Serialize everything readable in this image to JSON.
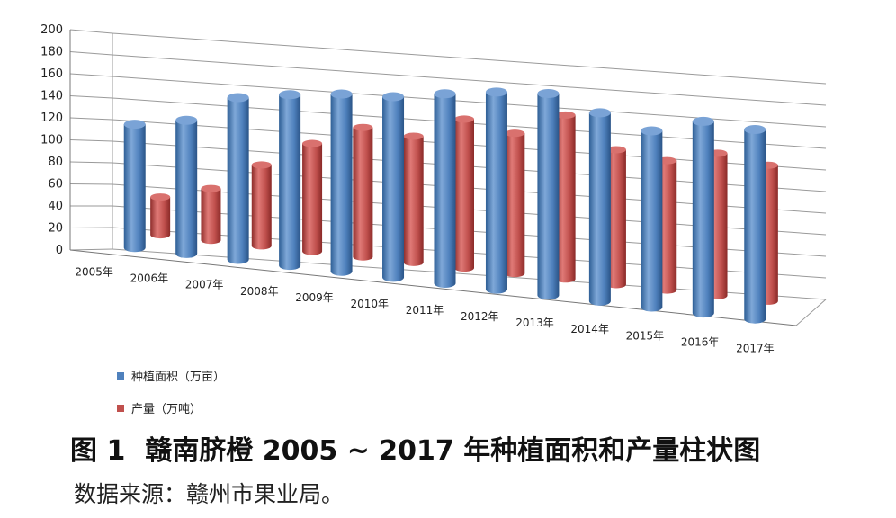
{
  "chart_data": {
    "type": "bar",
    "categories": [
      "2005年",
      "2006年",
      "2007年",
      "2008年",
      "2009年",
      "2010年",
      "2011年",
      "2012年",
      "2013年",
      "2014年",
      "2015年",
      "2016年",
      "2017年"
    ],
    "series": [
      {
        "name": "种植面积（万亩）",
        "color": "#4f81bd",
        "values": [
          112,
          121,
          147,
          155,
          161,
          164,
          172,
          179,
          183,
          171,
          160,
          174,
          172
        ]
      },
      {
        "name": "产量（万吨）",
        "color": "#c0504d",
        "values": [
          35,
          48,
          75,
          100,
          120,
          117,
          138,
          130,
          152,
          125,
          120,
          132,
          126
        ]
      }
    ],
    "yticks": [
      0,
      20,
      40,
      60,
      80,
      100,
      120,
      140,
      160,
      180,
      200
    ],
    "ylim": [
      0,
      200
    ],
    "grid": true,
    "legend_position": "bottom-left",
    "bar_shape": "3d-cylinder"
  },
  "caption": {
    "figure_label": "图 1",
    "title": "赣南脐橙 2005 ~ 2017 年种植面积和产量柱状图"
  },
  "source": "数据来源：赣州市果业局。"
}
